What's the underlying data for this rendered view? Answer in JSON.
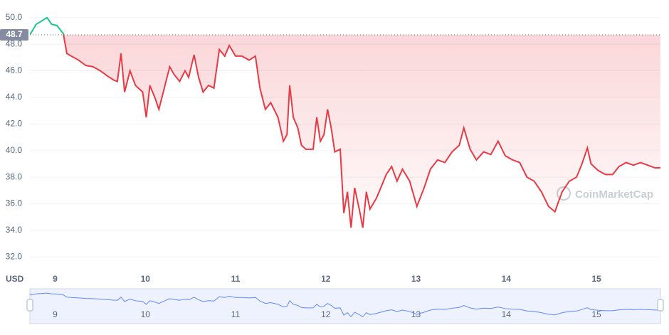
{
  "chart_data": {
    "type": "line",
    "currency": "USD",
    "watermark": "CoinMarketCap",
    "baseline": 48.7,
    "color": "#ea3943",
    "up_color": "#16c784",
    "grid": true,
    "xlim": [
      8.72,
      15.71
    ],
    "xticks": [
      9,
      10,
      11,
      12,
      13,
      14,
      15
    ],
    "ylim": [
      31,
      51
    ],
    "yticks": [
      {
        "value": 32,
        "label": "32.0"
      },
      {
        "value": 34,
        "label": "34.0"
      },
      {
        "value": 36,
        "label": "36.0"
      },
      {
        "value": 38,
        "label": "38.0"
      },
      {
        "value": 40,
        "label": "40.0"
      },
      {
        "value": 42,
        "label": "42.0"
      },
      {
        "value": 44,
        "label": "44.0"
      },
      {
        "value": 46,
        "label": "46.0"
      },
      {
        "value": 48,
        "label": "48.0"
      },
      {
        "value": 50,
        "label": "50.0"
      }
    ],
    "x": [
      8.72,
      8.79,
      8.84,
      8.91,
      8.96,
      9.02,
      9.09,
      9.13,
      9.18,
      9.26,
      9.34,
      9.42,
      9.5,
      9.58,
      9.65,
      9.69,
      9.73,
      9.77,
      9.83,
      9.89,
      9.97,
      10.01,
      10.05,
      10.11,
      10.15,
      10.21,
      10.27,
      10.32,
      10.38,
      10.44,
      10.48,
      10.54,
      10.59,
      10.64,
      10.7,
      10.76,
      10.82,
      10.88,
      10.93,
      11.0,
      11.07,
      11.15,
      11.22,
      11.27,
      11.33,
      11.39,
      11.47,
      11.53,
      11.57,
      11.6,
      11.64,
      11.69,
      11.73,
      11.78,
      11.86,
      11.9,
      11.94,
      11.98,
      12.02,
      12.06,
      12.1,
      12.16,
      12.2,
      12.24,
      12.28,
      12.32,
      12.38,
      12.41,
      12.45,
      12.49,
      12.56,
      12.61,
      12.67,
      12.73,
      12.79,
      12.85,
      12.93,
      13.01,
      13.09,
      13.16,
      13.24,
      13.32,
      13.4,
      13.48,
      13.53,
      13.6,
      13.67,
      13.75,
      13.83,
      13.91,
      13.99,
      14.07,
      14.15,
      14.23,
      14.31,
      14.39,
      14.47,
      14.54,
      14.62,
      14.7,
      14.78,
      14.84,
      14.9,
      14.94,
      15.02,
      15.1,
      15.18,
      15.25,
      15.33,
      15.41,
      15.49,
      15.57,
      15.65,
      15.71
    ],
    "values": [
      48.7,
      49.5,
      49.7,
      50.0,
      49.5,
      49.4,
      48.8,
      47.3,
      47.1,
      46.8,
      46.4,
      46.3,
      46.0,
      45.6,
      45.3,
      45.2,
      47.3,
      44.4,
      46.0,
      44.9,
      44.4,
      42.5,
      44.9,
      43.9,
      43.1,
      44.7,
      46.3,
      45.7,
      45.2,
      46.0,
      45.5,
      47.2,
      45.5,
      44.4,
      44.9,
      44.7,
      47.6,
      47.1,
      47.9,
      47.1,
      47.1,
      46.8,
      47.1,
      44.7,
      43.1,
      43.6,
      42.5,
      40.7,
      41.2,
      44.9,
      42.5,
      41.7,
      40.4,
      40.1,
      40.1,
      42.5,
      40.7,
      41.2,
      43.1,
      41.7,
      39.9,
      40.1,
      35.3,
      36.9,
      34.2,
      37.2,
      35.3,
      34.2,
      36.9,
      35.6,
      36.4,
      37.2,
      38.2,
      38.8,
      37.7,
      38.6,
      37.7,
      35.8,
      37.2,
      38.6,
      39.3,
      39.1,
      39.9,
      40.4,
      41.7,
      40.1,
      39.3,
      39.9,
      39.7,
      40.7,
      39.6,
      39.3,
      39.1,
      38.0,
      37.7,
      36.9,
      35.8,
      35.4,
      36.9,
      37.7,
      38.0,
      39.0,
      40.2,
      39.0,
      38.5,
      38.2,
      38.2,
      38.8,
      39.1,
      38.9,
      39.1,
      38.9,
      38.7,
      38.7
    ]
  }
}
